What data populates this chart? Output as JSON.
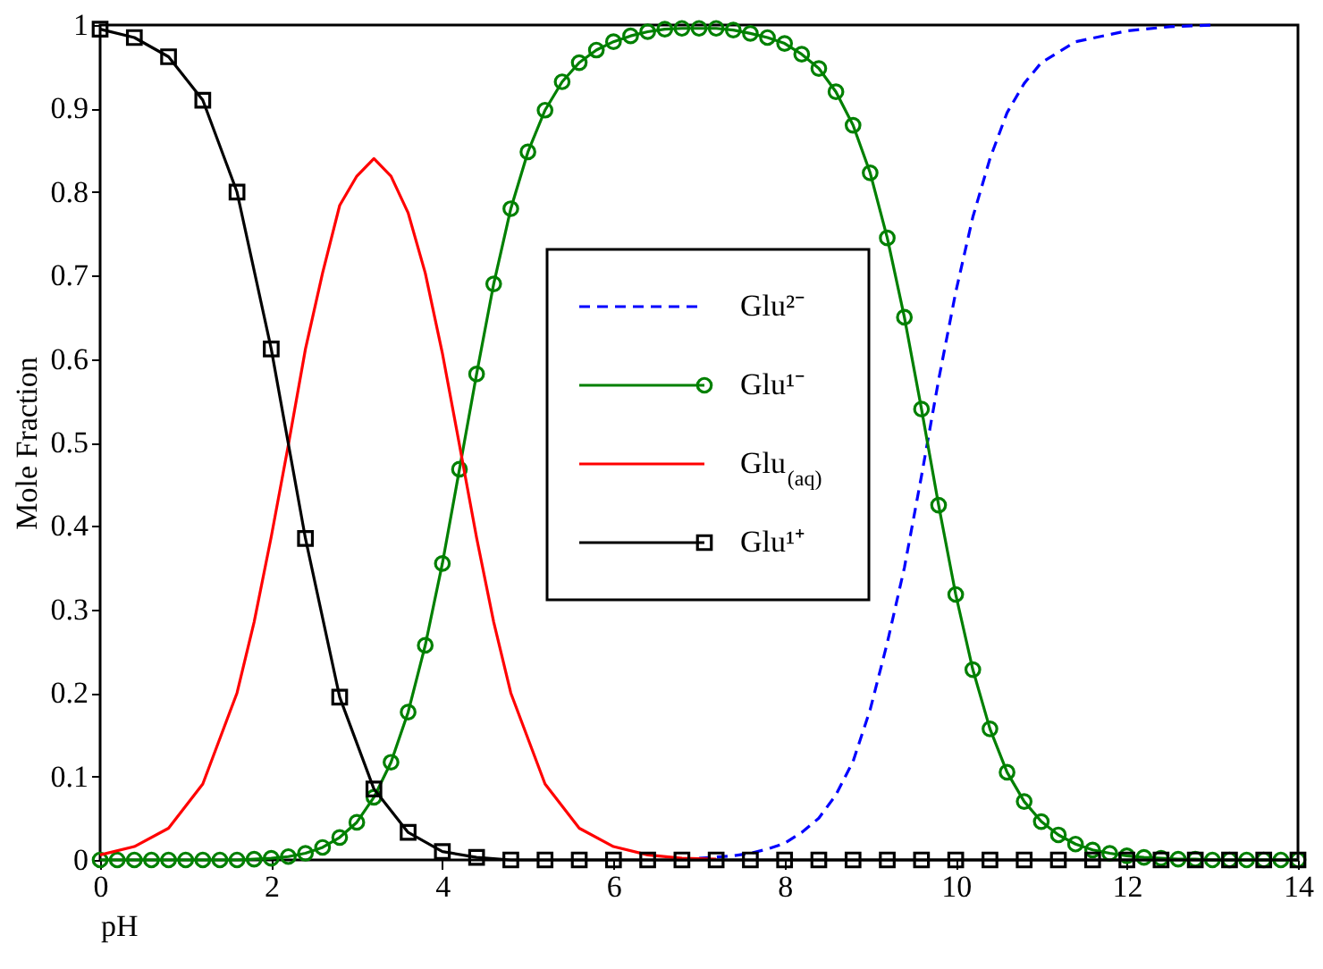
{
  "chart_data": {
    "type": "line",
    "xlabel": "pH",
    "ylabel": "Mole Fraction",
    "xlim": [
      0,
      14
    ],
    "xticks": [
      0,
      2,
      4,
      6,
      8,
      10,
      12,
      14
    ],
    "ylim": [
      0,
      1
    ],
    "yticks": [
      0,
      0.1,
      0.2,
      0.3,
      0.4,
      0.5,
      0.6,
      0.7,
      0.8,
      0.9,
      1
    ],
    "grid": false,
    "legend": "center",
    "series": [
      {
        "name": "Glu²⁻",
        "color": "#0000ff",
        "line_style": "dashed",
        "marker": "none",
        "x": [
          7.0,
          7.4,
          7.6,
          7.8,
          8.0,
          8.2,
          8.4,
          8.6,
          8.8,
          9.0,
          9.2,
          9.4,
          9.6,
          9.8,
          10.0,
          10.2,
          10.4,
          10.6,
          10.8,
          11.0,
          11.4,
          12.0,
          12.5,
          13.0
        ],
        "values": [
          0.002,
          0.005,
          0.008,
          0.013,
          0.02,
          0.033,
          0.05,
          0.078,
          0.118,
          0.18,
          0.26,
          0.35,
          0.46,
          0.575,
          0.68,
          0.77,
          0.84,
          0.895,
          0.93,
          0.955,
          0.98,
          0.993,
          0.998,
          1
        ]
      },
      {
        "name": "Glu¹⁻",
        "color": "#008000",
        "line_style": "solid",
        "marker": "circle",
        "x": [
          0,
          0.2,
          0.4,
          0.6,
          0.8,
          1.0,
          1.2,
          1.4,
          1.6,
          1.8,
          2.0,
          2.2,
          2.4,
          2.6,
          2.8,
          3.0,
          3.2,
          3.4,
          3.6,
          3.8,
          4.0,
          4.2,
          4.4,
          4.6,
          4.8,
          5.0,
          5.2,
          5.4,
          5.6,
          5.8,
          6.0,
          6.2,
          6.4,
          6.6,
          6.8,
          7.0,
          7.2,
          7.4,
          7.6,
          7.8,
          8.0,
          8.2,
          8.4,
          8.6,
          8.8,
          9.0,
          9.2,
          9.4,
          9.6,
          9.8,
          10.0,
          10.2,
          10.4,
          10.6,
          10.8,
          11.0,
          11.2,
          11.4,
          11.6,
          11.8,
          12.0,
          12.2,
          12.4,
          12.6,
          12.8,
          13.0,
          13.2,
          13.4,
          13.6,
          13.8,
          14.0
        ],
        "values": [
          0,
          0,
          0,
          0,
          0,
          0,
          0,
          0,
          0,
          0.001,
          0.002,
          0.004,
          0.008,
          0.015,
          0.027,
          0.045,
          0.075,
          0.117,
          0.177,
          0.257,
          0.355,
          0.468,
          0.582,
          0.69,
          0.78,
          0.848,
          0.898,
          0.932,
          0.955,
          0.97,
          0.98,
          0.987,
          0.992,
          0.995,
          0.996,
          0.996,
          0.996,
          0.994,
          0.99,
          0.985,
          0.978,
          0.965,
          0.948,
          0.92,
          0.88,
          0.823,
          0.745,
          0.65,
          0.54,
          0.425,
          0.318,
          0.228,
          0.157,
          0.105,
          0.07,
          0.046,
          0.03,
          0.019,
          0.012,
          0.008,
          0.005,
          0.003,
          0.002,
          0.001,
          0.001,
          0,
          0,
          0,
          0,
          0,
          0
        ]
      },
      {
        "name": "Glu$_{(aq)}$",
        "color": "#ff0000",
        "line_style": "solid",
        "marker": "none",
        "x": [
          0,
          0.4,
          0.8,
          1.2,
          1.6,
          1.8,
          2.0,
          2.2,
          2.4,
          2.6,
          2.8,
          3.0,
          3.2,
          3.4,
          3.6,
          3.8,
          4.0,
          4.2,
          4.4,
          4.6,
          4.8,
          5.2,
          5.6,
          6.0,
          6.4,
          6.8,
          7.2
        ],
        "values": [
          0.006,
          0.016,
          0.038,
          0.091,
          0.2,
          0.285,
          0.387,
          0.497,
          0.612,
          0.703,
          0.784,
          0.819,
          0.84,
          0.819,
          0.775,
          0.703,
          0.607,
          0.497,
          0.386,
          0.285,
          0.2,
          0.091,
          0.038,
          0.016,
          0.006,
          0.002,
          0.001
        ]
      },
      {
        "name": "Glu¹⁺",
        "color": "#000000",
        "line_style": "solid",
        "marker": "square",
        "x": [
          0,
          0.4,
          0.8,
          1.2,
          1.6,
          2.0,
          2.4,
          2.8,
          3.2,
          3.6,
          4.0,
          4.4,
          4.8,
          5.2,
          5.6,
          6.0,
          6.4,
          6.8,
          7.2,
          7.6,
          8.0,
          8.4,
          8.8,
          9.2,
          9.6,
          10.0,
          10.4,
          10.8,
          11.2,
          11.6,
          12.0,
          12.4,
          12.8,
          13.2,
          13.6,
          14.0
        ],
        "values": [
          0.995,
          0.985,
          0.962,
          0.91,
          0.8,
          0.612,
          0.385,
          0.195,
          0.085,
          0.033,
          0.01,
          0.003,
          0,
          0,
          0,
          0,
          0,
          0,
          0,
          0,
          0,
          0,
          0,
          0,
          0,
          0,
          0,
          0,
          0,
          0,
          0,
          0,
          0,
          0,
          0,
          0
        ]
      }
    ]
  }
}
